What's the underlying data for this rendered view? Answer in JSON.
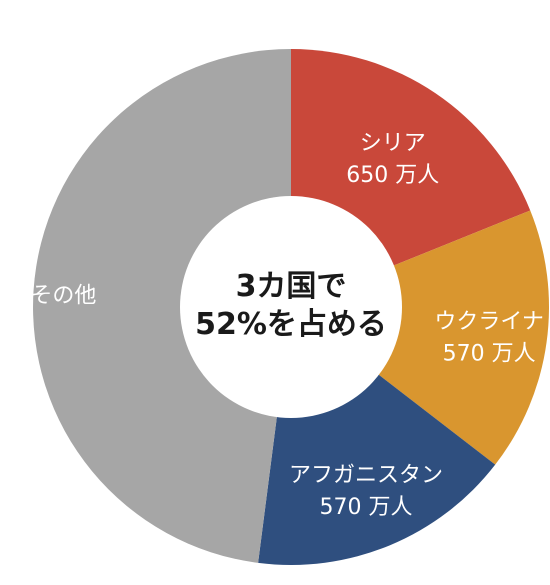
{
  "chart_data": {
    "type": "pie",
    "donut": true,
    "center_text": [
      "3カ国で",
      "52%を占める"
    ],
    "slices": [
      {
        "label": "シリア",
        "value_text": "650 万人",
        "value": 650,
        "color": "#c9483a"
      },
      {
        "label": "ウクライナ",
        "value_text": "570 万人",
        "value": 570,
        "color": "#d9962f"
      },
      {
        "label": "アフガニスタン",
        "value_text": "570 万人",
        "value": 570,
        "color": "#2f4f7f"
      },
      {
        "label": "その他",
        "value_text": "",
        "value": 1650,
        "color": "#a6a6a6"
      }
    ]
  }
}
